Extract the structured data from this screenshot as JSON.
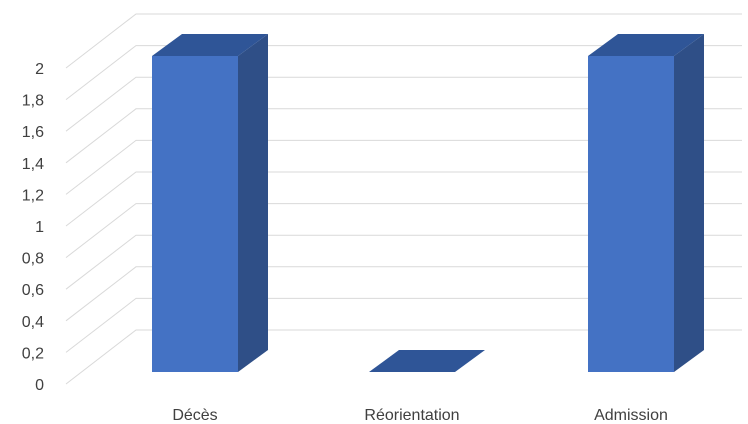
{
  "chart_data": {
    "type": "bar",
    "title": "",
    "xlabel": "",
    "ylabel": "",
    "categories": [
      "Décès",
      "Réorientation",
      "Admission"
    ],
    "values": [
      2,
      0,
      2
    ],
    "ylim": [
      0,
      2
    ],
    "yticks": [
      "0",
      "0,2",
      "0,4",
      "0,6",
      "0,8",
      "1",
      "1,2",
      "1,4",
      "1,6",
      "1,8",
      "2"
    ],
    "grid": true,
    "legend": "none",
    "colors": {
      "front": "#4472C4",
      "side": "#2F4F87",
      "top": "#2F5597",
      "grid": "#D9D9D9"
    }
  }
}
